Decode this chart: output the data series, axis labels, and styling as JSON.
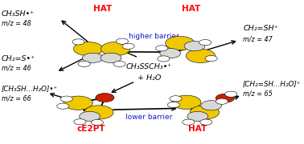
{
  "bg_color": "#ffffff",
  "labels": {
    "top_left_1": "CH₃SH•⁺",
    "top_left_1_sub": "m/z = 48",
    "top_left_2": "CH₂=S•⁺",
    "top_left_2_sub": "m/z = 46",
    "bot_left_1": "[CH₃SH...H₂O]•⁺",
    "bot_left_1_sub": "m/z = 66",
    "top_right_1": "CH₂=SH⁺",
    "top_right_1_sub": "m/z = 47",
    "bot_right_1": "[CH₂=SH...H₂O]⁺",
    "bot_right_1_sub": "m/z = 65",
    "center": "CH₃SSCH₃•⁺",
    "water": "+ H₂O",
    "higher_barrier": "higher barrier",
    "lower_barrier": "lower barrier",
    "hat_top_left": "HAT",
    "hat_top_right": "HAT",
    "hat_bot_right": "HAT",
    "ce2pt": "cE2PT"
  },
  "colors": {
    "red": "#ff0000",
    "blue": "#1515cc",
    "black": "#000000",
    "yellow": "#f0c800",
    "gray": "#b0b0b0",
    "darkgray": "#666666",
    "white": "#ffffff",
    "orange_red": "#cc2200",
    "light_gray": "#d8d8d8"
  },
  "mol_tl": [
    0.335,
    0.64
  ],
  "mol_tr": [
    0.63,
    0.64
  ],
  "mol_bl": [
    0.305,
    0.27
  ],
  "mol_br": [
    0.655,
    0.26
  ]
}
